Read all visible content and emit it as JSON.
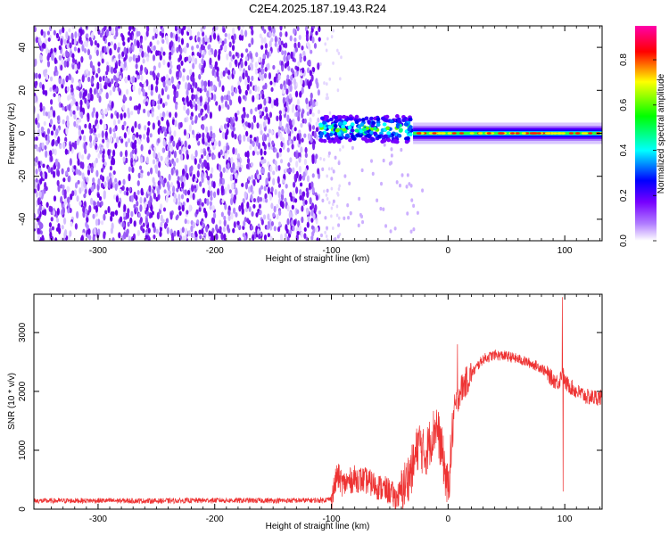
{
  "title": "C2E4.2025.187.19.43.R24",
  "chart_data": [
    {
      "type": "heatmap",
      "xlabel": "Height of straight line (km)",
      "ylabel": "Frequency (Hz)",
      "xlim": [
        -355,
        132
      ],
      "ylim": [
        -50,
        50
      ],
      "xticks": [
        -300,
        -200,
        -100,
        0,
        100
      ],
      "yticks": [
        -40,
        -20,
        0,
        20,
        40
      ],
      "colorbar": {
        "label": "Normalized spectral amplitude",
        "range": [
          0.0,
          0.95
        ],
        "ticks": [
          0.0,
          0.2,
          0.4,
          0.6,
          0.8
        ],
        "colors": [
          "#ffffff",
          "#7700ff",
          "#0000ff",
          "#00ffff",
          "#00ff00",
          "#ffff00",
          "#ff0000",
          "#ff00aa"
        ]
      },
      "regions": [
        {
          "name": "noise",
          "x": [
            -355,
            -110
          ],
          "amplitude": 0.12
        },
        {
          "name": "broad_signal",
          "x": [
            -110,
            -30
          ],
          "freq_center": 2,
          "freq_halfwidth": 6,
          "amplitude": 0.4
        },
        {
          "name": "narrow_carrier",
          "x": [
            -30,
            132
          ],
          "freq_center": 0,
          "freq_halfwidth": 2,
          "amplitude": 0.85
        }
      ],
      "grid": false
    },
    {
      "type": "line",
      "xlabel": "Height of straight line (km)",
      "ylabel": "SNR (10 * v/v)",
      "xlim": [
        -355,
        132
      ],
      "ylim": [
        0,
        3650
      ],
      "xticks": [
        -300,
        -200,
        -100,
        0,
        100
      ],
      "yticks": [
        0,
        1000,
        2000,
        3000
      ],
      "series": [
        {
          "color": "#ee3333",
          "x": [
            -355,
            -300,
            -250,
            -200,
            -150,
            -110,
            -100,
            -95,
            -90,
            -80,
            -70,
            -60,
            -50,
            -45,
            -40,
            -30,
            -25,
            -20,
            -10,
            -5,
            0,
            5,
            10,
            15,
            20,
            30,
            40,
            50,
            60,
            70,
            80,
            85,
            90,
            95,
            98,
            100,
            105,
            110,
            120,
            132
          ],
          "values": [
            140,
            145,
            140,
            150,
            145,
            150,
            170,
            580,
            420,
            520,
            480,
            380,
            300,
            180,
            300,
            720,
            1150,
            900,
            1450,
            950,
            300,
            1650,
            2000,
            2150,
            2300,
            2550,
            2620,
            2600,
            2550,
            2480,
            2400,
            2300,
            2200,
            2150,
            2350,
            2150,
            2080,
            2000,
            1900,
            1900
          ],
          "spikes": [
            {
              "x": 8,
              "y": 2800
            },
            {
              "x": 98,
              "y": 3600
            },
            {
              "x": 98.5,
              "y": 300
            }
          ]
        }
      ],
      "grid": false
    }
  ]
}
